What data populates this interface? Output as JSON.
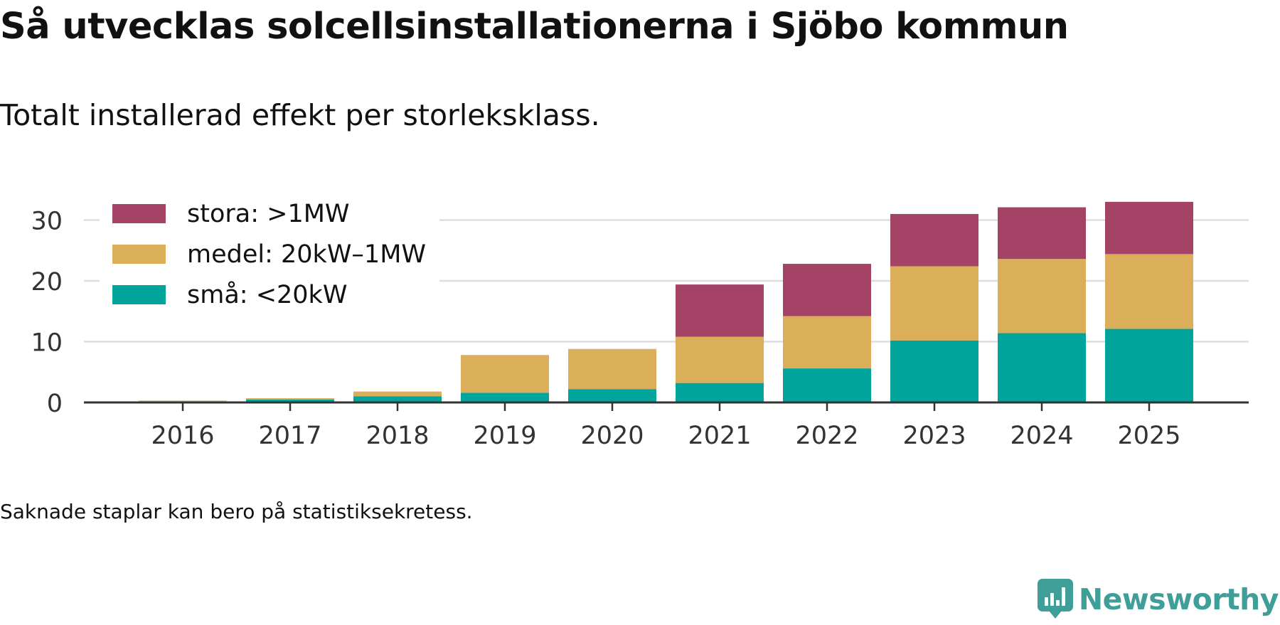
{
  "title": "Så utvecklas solcellsinstallationerna i Sjöbo kommun",
  "subtitle": "Totalt installerad effekt per storleksklass.",
  "footnote": "Saknade staplar kan bero på statistiksekretess.",
  "brand": {
    "name": "Newsworthy",
    "icon": "newsworthy-logo-icon"
  },
  "colors": {
    "small": "#00a49a",
    "medium": "#dbaf5a",
    "large": "#a54367",
    "grid": "#dddddd",
    "axis": "#333333",
    "text": "#333333"
  },
  "chart_data": {
    "type": "bar",
    "stacked": true,
    "title": "Så utvecklas solcellsinstallationerna i Sjöbo kommun",
    "subtitle": "Totalt installerad effekt per storleksklass.",
    "xlabel": "",
    "ylabel": "",
    "ylim": [
      0,
      33
    ],
    "yticks": [
      0,
      10,
      20,
      30
    ],
    "ytick_labels": [
      "0",
      "10",
      "20",
      "30"
    ],
    "grid": true,
    "legend_position": "top-left",
    "categories": [
      "2016",
      "2017",
      "2018",
      "2019",
      "2020",
      "2021",
      "2022",
      "2023",
      "2024",
      "2025"
    ],
    "series": [
      {
        "name": "små: <20kW",
        "color": "#00a49a",
        "values": [
          0.2,
          0.5,
          1.0,
          1.6,
          2.2,
          3.2,
          5.6,
          10.2,
          11.4,
          12.1
        ]
      },
      {
        "name": "medel: 20kW–1MW",
        "color": "#dbaf5a",
        "values": [
          0.1,
          0.2,
          0.8,
          6.2,
          6.6,
          7.6,
          8.6,
          12.2,
          12.2,
          12.3
        ]
      },
      {
        "name": "stora: >1MW",
        "color": "#a54367",
        "values": [
          0,
          0,
          0,
          0,
          0,
          8.6,
          8.6,
          8.6,
          8.5,
          8.6
        ]
      }
    ]
  }
}
